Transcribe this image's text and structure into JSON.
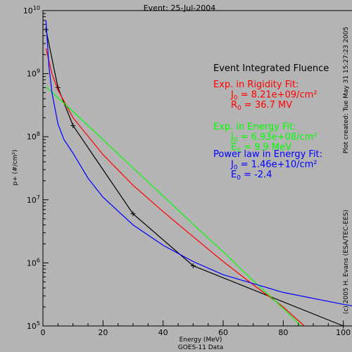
{
  "chart_data": {
    "type": "line",
    "title": "Event: 25-Jul-2004",
    "xlabel": "Energy (MeV)",
    "ylabel": "p+ (#/cm²)",
    "footer": "GOES-11 Data",
    "xlim": [
      0,
      105
    ],
    "ylim": [
      100000,
      10000000000
    ],
    "yscale": "log",
    "grid": false,
    "x_ticks": [
      0,
      20,
      40,
      60,
      80,
      100
    ],
    "y_ticks": [
      100000,
      1000000,
      10000000,
      100000000,
      1000000000,
      10000000000
    ],
    "y_tick_labels": [
      {
        "base": "10",
        "exp": "5"
      },
      {
        "base": "10",
        "exp": "6"
      },
      {
        "base": "10",
        "exp": "7"
      },
      {
        "base": "10",
        "exp": "8"
      },
      {
        "base": "10",
        "exp": "9"
      },
      {
        "base": "10",
        "exp": "10"
      }
    ],
    "legend": {
      "heading": "Event Integrated Fluence",
      "placement": "right",
      "entries": [
        {
          "color": "#ff0000",
          "lines": [
            {
              "text": "Exp. in Rigidity Fit:"
            },
            {
              "sym": "J",
              "sub": "0",
              "text": " = 8.21e+09/cm²"
            },
            {
              "sym": "R",
              "sub": "0",
              "text": " =  36.7 MV"
            }
          ]
        },
        {
          "color": "#00ff00",
          "lines": [
            {
              "text": "Exp. in Energy Fit:"
            },
            {
              "sym": "J",
              "sub": "0",
              "text": " = 6.93e+08/cm²"
            },
            {
              "sym": "E",
              "sub": "0",
              "text": " =   9.9 MeV"
            }
          ]
        },
        {
          "color": "#0000ff",
          "lines": [
            {
              "text": "Power law in Energy Fit:"
            },
            {
              "sym": "J",
              "sub": "0",
              "text": " = 1.46e+10/cm²"
            },
            {
              "sym": "E",
              "sub": "0",
              "text": " =  -2.4"
            }
          ]
        }
      ]
    },
    "series": [
      {
        "color": "#000000",
        "markers": true,
        "x": [
          1,
          5,
          10,
          30,
          50,
          100
        ],
        "y": [
          5000000000,
          600000000,
          150000000,
          6000000,
          900000,
          100000
        ]
      },
      {
        "color": "#ff0000",
        "markers": false,
        "x": [
          1,
          3,
          5,
          10,
          20,
          30,
          40,
          50,
          60,
          70,
          80,
          87
        ],
        "y": [
          2500000000,
          1000000000,
          550000000,
          200000000,
          52000000,
          17000000,
          6500000,
          2600000,
          1050000,
          450000,
          200000,
          100000
        ]
      },
      {
        "color": "#00ff00",
        "markers": false,
        "x": [
          1,
          10,
          20,
          30,
          40,
          50,
          60,
          70,
          80,
          86
        ],
        "y": [
          620000000,
          250000000,
          90000000,
          32000000,
          11500000,
          4100000,
          1500000,
          520000,
          190000,
          100000
        ]
      },
      {
        "color": "#0000ff",
        "markers": false,
        "x": [
          1,
          2,
          3,
          5,
          7,
          10,
          15,
          20,
          30,
          40,
          50,
          60,
          80,
          100,
          105
        ],
        "y": [
          7000000000,
          1300000000,
          500000000,
          160000000,
          90000000,
          55000000,
          22000000,
          11000000,
          4000000,
          1900000,
          1050000,
          650000,
          340000,
          220000,
          200000
        ]
      }
    ]
  },
  "side_text": {
    "plot_created": "Plot created: Tue May 31 15:27:23 2005",
    "copyright": "(c) 2005 H. Evans (ESA/TEC-EES)"
  }
}
